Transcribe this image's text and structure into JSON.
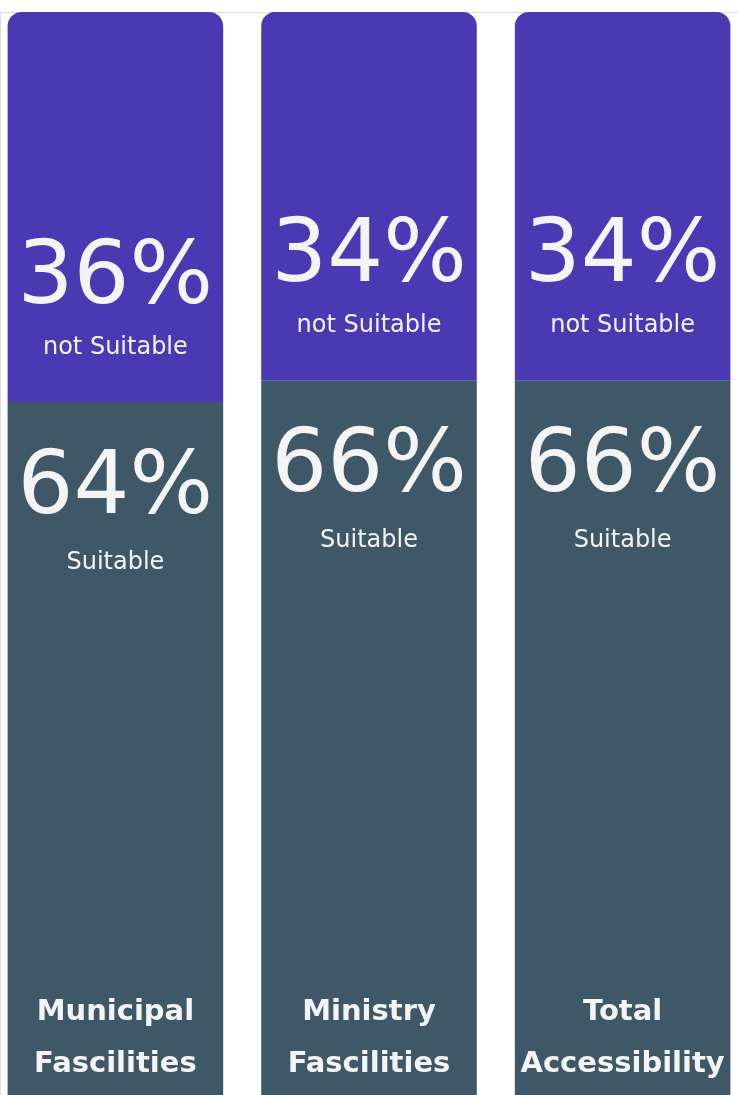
{
  "chart_data": {
    "type": "bar",
    "stacked": true,
    "categories": [
      "Municipal Fascilities",
      "Ministry Fascilities",
      "Total Accessibility"
    ],
    "series": [
      {
        "name": "Suitable",
        "color": "#3e5868",
        "values": [
          64,
          66,
          66
        ],
        "value_labels": [
          "64%",
          "66%",
          "66%"
        ]
      },
      {
        "name": "not Suitable",
        "color": "#4b38b3",
        "values": [
          36,
          34,
          34
        ],
        "value_labels": [
          "36%",
          "34%",
          "34%"
        ]
      }
    ]
  }
}
